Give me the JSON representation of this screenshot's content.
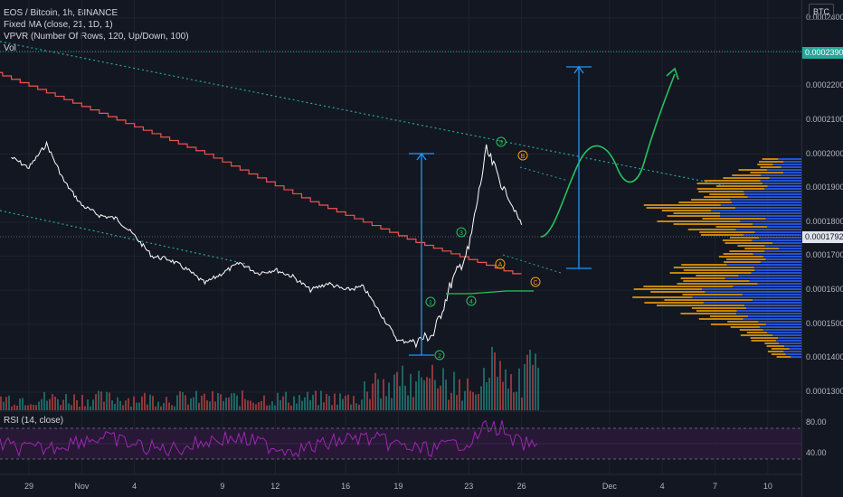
{
  "legend": {
    "title": "EOS / Bitcoin, 1h, BINANCE",
    "ma": "Fixed MA (close, 21, 1D, 1)",
    "vpvr": "VPVR (Number Of Rows, 120, Up/Down, 100)",
    "vol": "Vol"
  },
  "currency_badge": "BTC",
  "price_axis": {
    "ticks": [
      "0.0002400",
      "0.0002300",
      "0.0002200",
      "0.0002100",
      "0.0002000",
      "0.0001900",
      "0.0001800",
      "0.0001700",
      "0.0001600",
      "0.0001500",
      "0.0001400",
      "0.0001300"
    ],
    "target_price": "0.0002390",
    "current_price": "0.0001792"
  },
  "time_axis": {
    "ticks": [
      "29",
      "Nov",
      "4",
      "9",
      "12",
      "16",
      "19",
      "23",
      "26",
      "Dec",
      "4",
      "7",
      "10"
    ]
  },
  "rsi": {
    "label": "RSI (14, close)",
    "ticks": [
      "80.00",
      "40.00"
    ]
  },
  "wave_labels": [
    "1",
    "2",
    "3",
    "4",
    "5",
    "A",
    "B",
    "C"
  ],
  "colors": {
    "background": "#131722",
    "price": "#ffffff",
    "ma": "#ef5350",
    "trendline": "#26a69a",
    "arrow": "#2196f3",
    "projection": "#26c35e",
    "vpvr_up": "#2962ff",
    "vpvr_down": "#f0a30a",
    "rsi": "#9c27b0",
    "target_line": "#26a69a"
  },
  "chart_data": {
    "type": "line",
    "title": "EOS / Bitcoin, 1h, BINANCE",
    "xlabel": "",
    "ylabel": "",
    "ylim": [
      0.000125,
      0.000243
    ],
    "x_ticks": [
      "29",
      "Nov",
      "4",
      "9",
      "12",
      "16",
      "19",
      "23",
      "26",
      "Dec",
      "4",
      "7",
      "10"
    ],
    "series": [
      {
        "name": "EOS / Bitcoin",
        "x": [
          "Oct 28",
          "Oct 29",
          "Oct 30",
          "Oct 31",
          "Nov 1",
          "Nov 2",
          "Nov 3",
          "Nov 4",
          "Nov 5",
          "Nov 6",
          "Nov 7",
          "Nov 8",
          "Nov 9",
          "Nov 10",
          "Nov 11",
          "Nov 12",
          "Nov 13",
          "Nov 14",
          "Nov 15",
          "Nov 16",
          "Nov 17",
          "Nov 18",
          "Nov 19",
          "Nov 20",
          "Nov 21",
          "Nov 22",
          "Nov 23",
          "Nov 24",
          "Nov 25",
          "Nov 26"
        ],
        "values": [
          0.000199,
          0.000196,
          0.000203,
          0.000192,
          0.000185,
          0.000182,
          0.000181,
          0.000176,
          0.00017,
          0.000169,
          0.000166,
          0.000162,
          0.000165,
          0.000168,
          0.000165,
          0.000166,
          0.000164,
          0.00016,
          0.000162,
          0.00016,
          0.000161,
          0.000153,
          0.000145,
          0.000145,
          0.000147,
          0.000162,
          0.000172,
          0.000201,
          0.00019,
          0.0001792
        ]
      },
      {
        "name": "Fixed MA (close, 21, 1D, 1)",
        "x": [
          "Oct 27",
          "Oct 30",
          "Nov 2",
          "Nov 5",
          "Nov 8",
          "Nov 11",
          "Nov 14",
          "Nov 17",
          "Nov 20",
          "Nov 23",
          "Nov 26"
        ],
        "values": [
          0.000224,
          0.000218,
          0.000212,
          0.000206,
          0.0002,
          0.000193,
          0.000186,
          0.00018,
          0.000174,
          0.000169,
          0.000164
        ]
      },
      {
        "name": "Projection",
        "x": [
          "Nov 26",
          "Nov 27",
          "Nov 28",
          "Nov 29",
          "Nov 30",
          "Dec 1",
          "Dec 2"
        ],
        "values": [
          0.000178,
          0.000188,
          0.000208,
          0.000202,
          0.0002,
          0.000218,
          0.000232
        ]
      }
    ],
    "target_price": 0.000239,
    "current_price": 0.0001792,
    "rsi": {
      "name": "RSI (14, close)",
      "ylim": [
        20,
        90
      ],
      "bands": [
        70,
        30
      ]
    }
  }
}
